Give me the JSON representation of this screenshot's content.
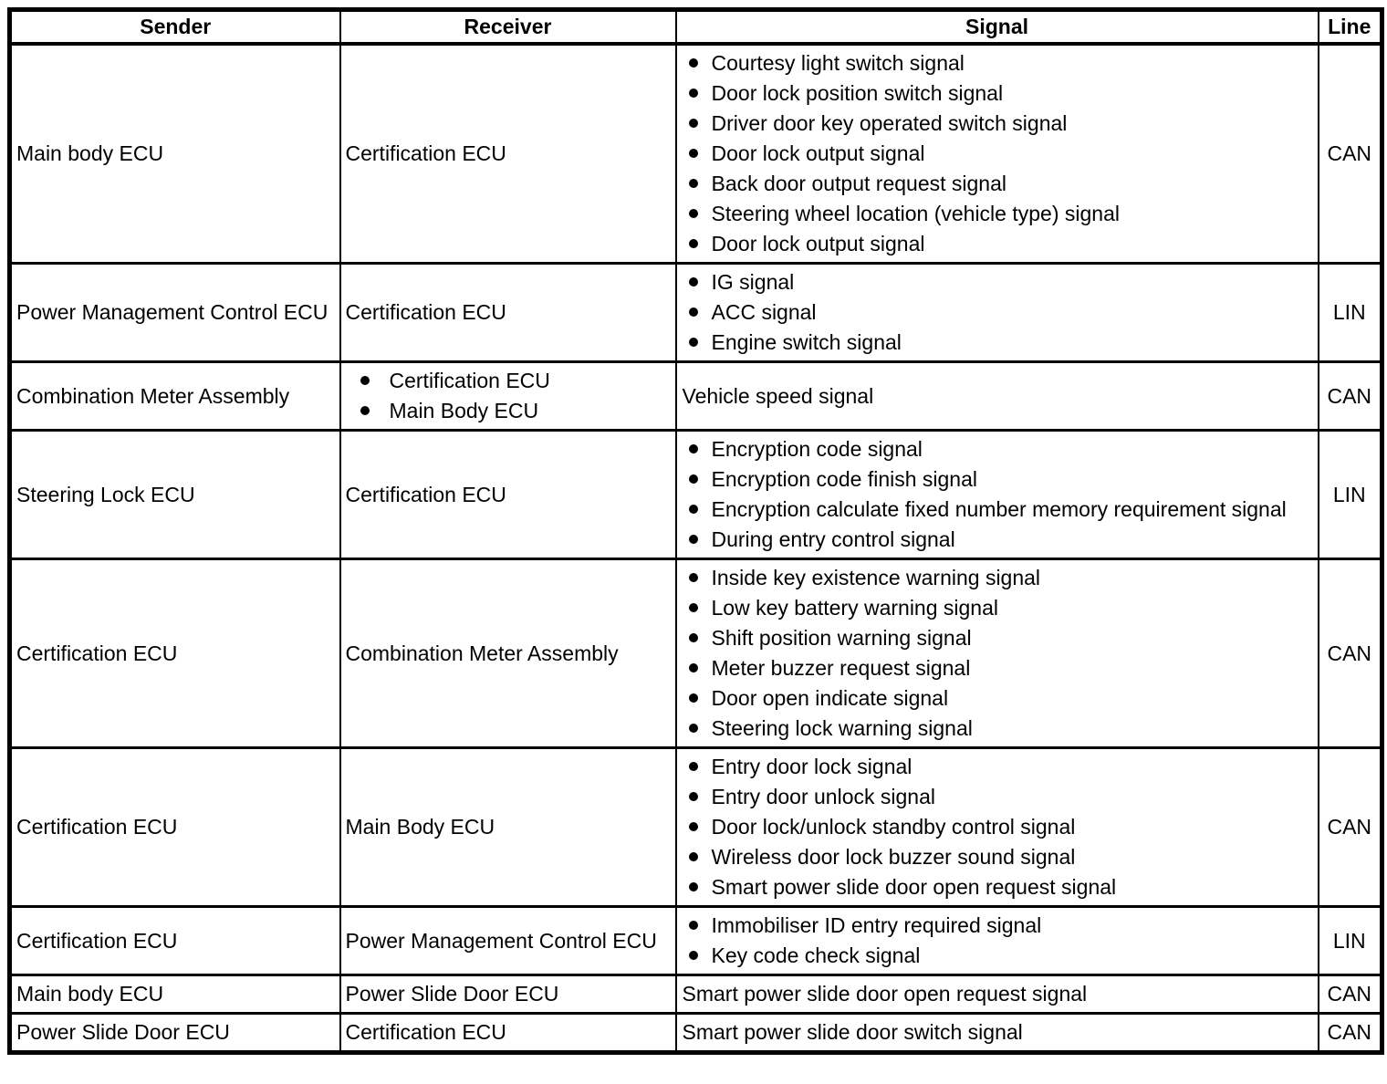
{
  "table": {
    "headers": [
      "Sender",
      "Receiver",
      "Signal",
      "Line"
    ],
    "rows": [
      {
        "sender": {
          "text": "Main body ECU"
        },
        "receiver": {
          "text": "Certification ECU"
        },
        "signal": {
          "bullets": [
            "Courtesy light switch signal",
            "Door lock position switch signal",
            "Driver door key operated switch signal",
            "Door lock output signal",
            "Back door output request signal",
            "Steering wheel location (vehicle type) signal",
            "Door lock output signal"
          ]
        },
        "line": "CAN"
      },
      {
        "sender": {
          "text": "Power Management Control ECU"
        },
        "receiver": {
          "text": "Certification ECU"
        },
        "signal": {
          "bullets": [
            "IG signal",
            "ACC signal",
            "Engine switch signal"
          ]
        },
        "line": "LIN"
      },
      {
        "sender": {
          "text": "Combination Meter Assembly"
        },
        "receiver": {
          "bullets": [
            "Certification ECU",
            "Main Body ECU"
          ]
        },
        "signal": {
          "text": "Vehicle speed signal"
        },
        "line": "CAN"
      },
      {
        "sender": {
          "text": "Steering Lock ECU"
        },
        "receiver": {
          "text": "Certification ECU"
        },
        "signal": {
          "bullets": [
            "Encryption code signal",
            "Encryption code finish signal",
            "Encryption calculate fixed number memory requirement signal",
            "During entry control signal"
          ]
        },
        "line": "LIN"
      },
      {
        "sender": {
          "text": "Certification ECU"
        },
        "receiver": {
          "text": "Combination Meter Assembly"
        },
        "signal": {
          "bullets": [
            "Inside key existence warning signal",
            "Low key battery warning signal",
            "Shift position warning signal",
            "Meter buzzer request signal",
            "Door open indicate signal",
            "Steering lock warning signal"
          ]
        },
        "line": "CAN"
      },
      {
        "sender": {
          "text": "Certification ECU"
        },
        "receiver": {
          "text": "Main Body ECU"
        },
        "signal": {
          "bullets": [
            "Entry door lock signal",
            "Entry door unlock signal",
            "Door lock/unlock standby control signal",
            "Wireless door lock buzzer sound signal",
            "Smart power slide door open request signal"
          ]
        },
        "line": "CAN"
      },
      {
        "sender": {
          "text": "Certification ECU"
        },
        "receiver": {
          "text": "Power Management Control ECU"
        },
        "signal": {
          "bullets": [
            "Immobiliser ID entry required signal",
            "Key code check signal"
          ]
        },
        "line": "LIN"
      },
      {
        "sender": {
          "text": "Main body ECU"
        },
        "receiver": {
          "text": "Power Slide Door ECU"
        },
        "signal": {
          "text": "Smart power slide door open request signal"
        },
        "line": "CAN"
      },
      {
        "sender": {
          "text": "Power Slide Door ECU"
        },
        "receiver": {
          "text": "Certification ECU"
        },
        "signal": {
          "text": "Smart power slide door switch signal"
        },
        "line": "CAN"
      }
    ]
  },
  "colors": {
    "text": "#000000",
    "border": "#000000",
    "background": "#ffffff"
  }
}
